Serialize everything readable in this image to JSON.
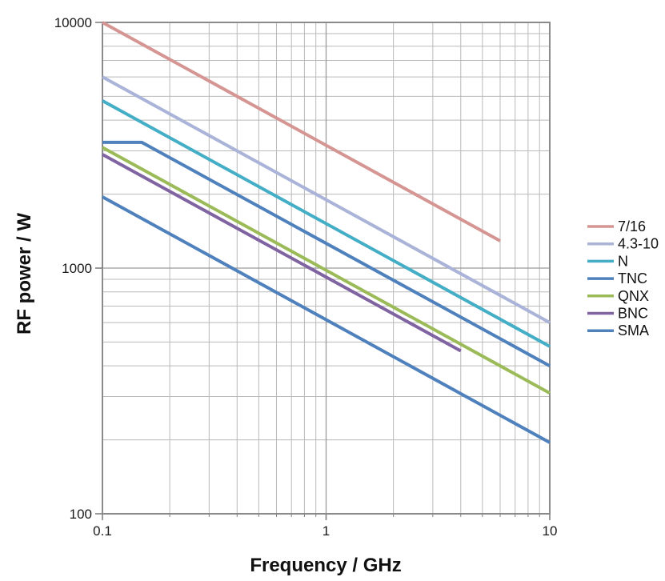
{
  "chart_data": {
    "type": "line",
    "title": "",
    "xlabel": "Frequency / GHz",
    "ylabel": "RF power / W",
    "x_scale": "log",
    "y_scale": "log",
    "xlim": [
      0.1,
      10
    ],
    "ylim": [
      100,
      10000
    ],
    "x_tick_labels": [
      "0.1",
      "1",
      "10"
    ],
    "y_tick_labels": [
      "100",
      "1000",
      "10000"
    ],
    "grid": "major and minor log gridlines, light grey, on",
    "legend_position": "right-center, no border",
    "series": [
      {
        "name": "7/16",
        "color": "#d59593",
        "x": [
          0.1,
          6
        ],
        "y": [
          10000,
          1290
        ]
      },
      {
        "name": "4.3-10",
        "color": "#aab3d8",
        "x": [
          0.1,
          10
        ],
        "y": [
          6000,
          600
        ]
      },
      {
        "name": "N",
        "color": "#44aec6",
        "x": [
          0.1,
          10
        ],
        "y": [
          4800,
          480
        ]
      },
      {
        "name": "TNC",
        "color": "#4f81bd",
        "x": [
          0.1,
          0.15,
          10
        ],
        "y": [
          3250,
          3250,
          400
        ]
      },
      {
        "name": "QNX",
        "color": "#9bbb59",
        "x": [
          0.1,
          10
        ],
        "y": [
          3100,
          310
        ]
      },
      {
        "name": "BNC",
        "color": "#8064a2",
        "x": [
          0.1,
          4
        ],
        "y": [
          2900,
          460
        ]
      },
      {
        "name": "SMA",
        "color": "#4f81bd",
        "x": [
          0.1,
          10
        ],
        "y": [
          1950,
          195
        ]
      }
    ]
  },
  "style_colors": {
    "minor_gridline": "#b9b9b9",
    "major_gridline": "#9a9a9a",
    "frame": "#8a8a8a",
    "tick": "#808080"
  }
}
